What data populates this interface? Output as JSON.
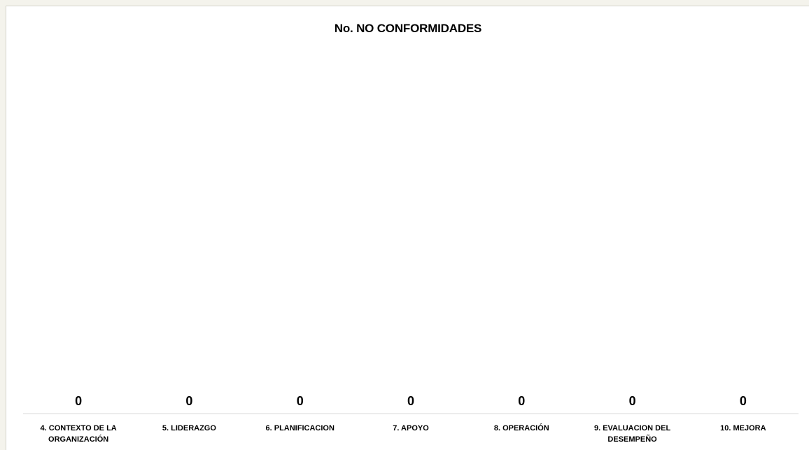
{
  "chart_data": {
    "type": "bar",
    "title": "No. NO CONFORMIDADES",
    "categories": [
      [
        "4. CONTEXTO DE LA",
        "ORGANIZACIÓN"
      ],
      [
        "5. LIDERAZGO"
      ],
      [
        "6. PLANIFICACION"
      ],
      [
        "7. APOYO"
      ],
      [
        "8. OPERACIÓN"
      ],
      [
        "9. EVALUACION DEL",
        "DESEMPEÑO"
      ],
      [
        "10. MEJORA"
      ]
    ],
    "values": [
      0,
      0,
      0,
      0,
      0,
      0,
      0
    ],
    "xlabel": "",
    "ylabel": "",
    "grid": false,
    "legend": "none",
    "bar_color": "#4472c4",
    "axis_color": "#d9d9d9"
  }
}
